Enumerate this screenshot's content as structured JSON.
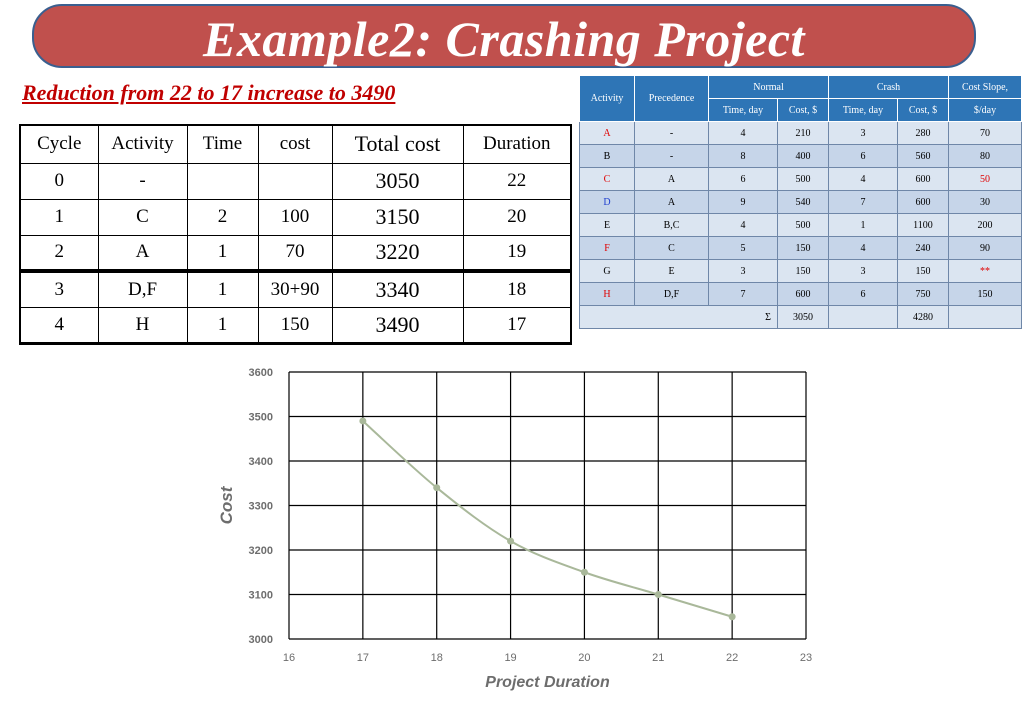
{
  "title": "Example2: Crashing Project",
  "subtitle": "Reduction from 22 to 17 increase to 3490",
  "cycle_table": {
    "headers": [
      "Cycle",
      "Activity",
      "Time",
      "cost",
      "Total cost",
      "Duration"
    ],
    "rows": [
      [
        "0",
        "-",
        "",
        "",
        "3050",
        "22"
      ],
      [
        "1",
        "C",
        "2",
        "100",
        "3150",
        "20"
      ],
      [
        "2",
        "A",
        "1",
        "70",
        "3220",
        "19"
      ],
      [
        "3",
        "D,F",
        "1",
        "30+90",
        "3340",
        "18"
      ],
      [
        "4",
        "H",
        "1",
        "150",
        "3490",
        "17"
      ]
    ]
  },
  "activity_table": {
    "h_activity": "Activity",
    "h_precedence": "Precedence",
    "h_normal": "Normal",
    "h_crash": "Crash",
    "h_slope": "Cost Slope,",
    "h_time": "Time, day",
    "h_cost": "Cost, $",
    "h_slope_unit": "$/day",
    "rows": [
      {
        "act": "A",
        "prec": "-",
        "nt": "4",
        "nc": "210",
        "ct": "3",
        "cc": "280",
        "slope": "70",
        "act_color": "red"
      },
      {
        "act": "B",
        "prec": "-",
        "nt": "8",
        "nc": "400",
        "ct": "6",
        "cc": "560",
        "slope": "80",
        "act_color": ""
      },
      {
        "act": "C",
        "prec": "A",
        "nt": "6",
        "nc": "500",
        "ct": "4",
        "cc": "600",
        "slope": "50",
        "act_color": "red",
        "slope_color": "red"
      },
      {
        "act": "D",
        "prec": "A",
        "nt": "9",
        "nc": "540",
        "ct": "7",
        "cc": "600",
        "slope": "30",
        "act_color": "blue"
      },
      {
        "act": "E",
        "prec": "B,C",
        "nt": "4",
        "nc": "500",
        "ct": "1",
        "cc": "1100",
        "slope": "200",
        "act_color": ""
      },
      {
        "act": "F",
        "prec": "C",
        "nt": "5",
        "nc": "150",
        "ct": "4",
        "cc": "240",
        "slope": "90",
        "act_color": "red"
      },
      {
        "act": "G",
        "prec": "E",
        "nt": "3",
        "nc": "150",
        "ct": "3",
        "cc": "150",
        "slope": "**",
        "act_color": "",
        "slope_color": "red"
      },
      {
        "act": "H",
        "prec": "D,F",
        "nt": "7",
        "nc": "600",
        "ct": "6",
        "cc": "750",
        "slope": "150",
        "act_color": "red"
      }
    ],
    "sum_symbol": "Σ",
    "sum_normal_cost": "3050",
    "sum_crash_cost": "4280"
  },
  "colors": {
    "banner": "#c0504d",
    "subtitle": "#c00000",
    "table_header": "#2e75b6",
    "line": "#a9b89a"
  },
  "chart_data": {
    "type": "line",
    "x": [
      17,
      18,
      19,
      20,
      21,
      22
    ],
    "series": [
      {
        "values": [
          3490,
          3340,
          3220,
          3150,
          3100,
          3050
        ]
      }
    ],
    "xlabel": "Project Duration",
    "ylabel": "Cost",
    "xlim": [
      16,
      23
    ],
    "ylim": [
      3000,
      3600
    ],
    "xticks": [
      "16",
      "17",
      "18",
      "19",
      "20",
      "21",
      "22",
      "23"
    ],
    "yticks": [
      "3000",
      "3100",
      "3200",
      "3300",
      "3400",
      "3500",
      "3600"
    ],
    "grid": true
  }
}
